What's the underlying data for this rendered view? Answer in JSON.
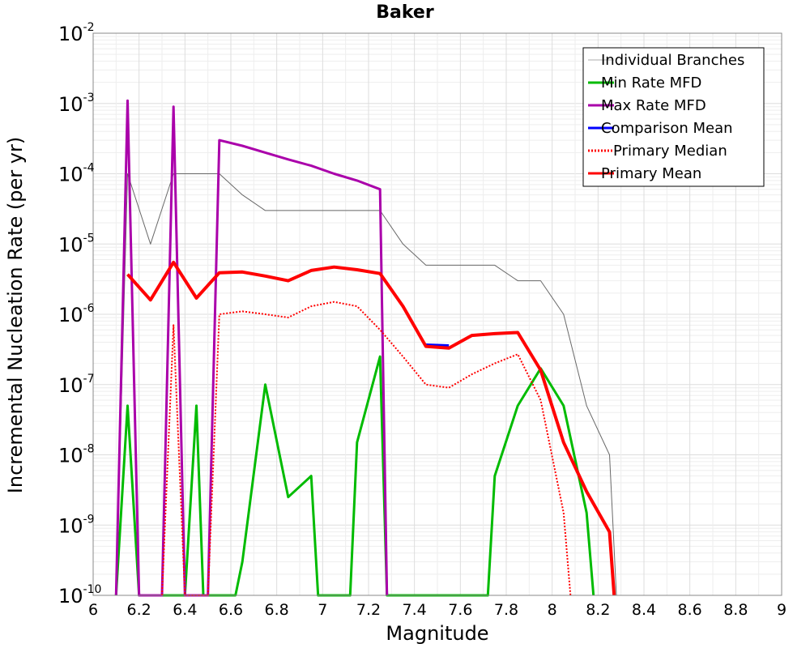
{
  "chart_data": {
    "type": "line",
    "title": "Baker",
    "xlabel": "Magnitude",
    "ylabel": "Incremental Nucleation Rate (per yr)",
    "x_range": [
      6,
      9
    ],
    "y_range": [
      1e-10,
      0.01
    ],
    "y_scale": "log",
    "grid": true,
    "legend_position": "top-right",
    "x_ticks": [
      "6",
      "6.2",
      "6.4",
      "6.6",
      "6.8",
      "7",
      "7.2",
      "7.4",
      "7.6",
      "7.8",
      "8",
      "8.2",
      "8.4",
      "8.6",
      "8.8",
      "9"
    ],
    "y_ticks": [
      {
        "base": "10",
        "exp": "-2",
        "value": 0.01
      },
      {
        "base": "10",
        "exp": "-3",
        "value": 0.001
      },
      {
        "base": "10",
        "exp": "-4",
        "value": 0.0001
      },
      {
        "base": "10",
        "exp": "-5",
        "value": 1e-05
      },
      {
        "base": "10",
        "exp": "-6",
        "value": 1e-06
      },
      {
        "base": "10",
        "exp": "-7",
        "value": 1e-07
      },
      {
        "base": "10",
        "exp": "-8",
        "value": 1e-08
      },
      {
        "base": "10",
        "exp": "-9",
        "value": 1e-09
      },
      {
        "base": "10",
        "exp": "-10",
        "value": 1e-10
      }
    ],
    "series": [
      {
        "name": "Individual Branches",
        "color": "#595959",
        "style": "thin",
        "points": [
          [
            6.1,
            1e-10
          ],
          [
            6.15,
            0.0001
          ],
          [
            6.25,
            1e-05
          ],
          [
            6.35,
            0.0001
          ],
          [
            6.45,
            0.0001
          ],
          [
            6.55,
            0.0001
          ],
          [
            6.65,
            5e-05
          ],
          [
            6.75,
            3e-05
          ],
          [
            6.85,
            3e-05
          ],
          [
            6.95,
            3e-05
          ],
          [
            7.05,
            3e-05
          ],
          [
            7.15,
            3e-05
          ],
          [
            7.25,
            3e-05
          ],
          [
            7.35,
            1e-05
          ],
          [
            7.45,
            5e-06
          ],
          [
            7.55,
            5e-06
          ],
          [
            7.65,
            5e-06
          ],
          [
            7.75,
            5e-06
          ],
          [
            7.85,
            3e-06
          ],
          [
            7.95,
            3e-06
          ],
          [
            8.05,
            1e-06
          ],
          [
            8.15,
            5e-08
          ],
          [
            8.25,
            1e-08
          ],
          [
            8.28,
            1e-10
          ]
        ]
      },
      {
        "name": "Min Rate MFD",
        "color": "#00bb00",
        "style": "solid",
        "points": [
          [
            6.1,
            1e-10
          ],
          [
            6.15,
            5e-08
          ],
          [
            6.2,
            1e-10
          ],
          [
            6.4,
            1e-10
          ],
          [
            6.45,
            5e-08
          ],
          [
            6.48,
            1e-10
          ],
          [
            6.62,
            1e-10
          ],
          [
            6.65,
            3e-10
          ],
          [
            6.75,
            1e-07
          ],
          [
            6.85,
            2.5e-09
          ],
          [
            6.95,
            5e-09
          ],
          [
            6.98,
            1e-10
          ],
          [
            7.12,
            1e-10
          ],
          [
            7.15,
            1.5e-08
          ],
          [
            7.25,
            2.5e-07
          ],
          [
            7.28,
            1e-10
          ],
          [
            7.72,
            1e-10
          ],
          [
            7.75,
            5e-09
          ],
          [
            7.85,
            5e-08
          ],
          [
            7.95,
            1.7e-07
          ],
          [
            8.05,
            5e-08
          ],
          [
            8.15,
            1.5e-09
          ],
          [
            8.18,
            1e-10
          ]
        ]
      },
      {
        "name": "Max Rate MFD",
        "color": "#aa00aa",
        "style": "solid",
        "points": [
          [
            6.1,
            1e-10
          ],
          [
            6.15,
            0.0011
          ],
          [
            6.2,
            1e-10
          ],
          [
            6.3,
            1e-10
          ],
          [
            6.35,
            0.0009
          ],
          [
            6.4,
            1e-10
          ],
          [
            6.5,
            1e-10
          ],
          [
            6.55,
            0.0003
          ],
          [
            6.65,
            0.00025
          ],
          [
            6.75,
            0.0002
          ],
          [
            6.85,
            0.00016
          ],
          [
            6.95,
            0.00013
          ],
          [
            7.05,
            0.0001
          ],
          [
            7.15,
            8e-05
          ],
          [
            7.25,
            6e-05
          ],
          [
            7.28,
            1e-10
          ]
        ]
      },
      {
        "name": "Comparison Mean",
        "color": "#0000ff",
        "style": "solid",
        "points": [
          [
            7.45,
            3.7e-07
          ],
          [
            7.55,
            3.6e-07
          ]
        ]
      },
      {
        "name": "Primary Median",
        "color": "#ff0000",
        "style": "dotted",
        "points": [
          [
            6.3,
            1e-10
          ],
          [
            6.35,
            7e-07
          ],
          [
            6.4,
            1e-10
          ],
          [
            6.5,
            1e-10
          ],
          [
            6.55,
            1e-06
          ],
          [
            6.65,
            1.1e-06
          ],
          [
            6.75,
            1e-06
          ],
          [
            6.85,
            9e-07
          ],
          [
            6.95,
            1.3e-06
          ],
          [
            7.05,
            1.5e-06
          ],
          [
            7.15,
            1.3e-06
          ],
          [
            7.25,
            6e-07
          ],
          [
            7.35,
            2.5e-07
          ],
          [
            7.45,
            1e-07
          ],
          [
            7.55,
            9e-08
          ],
          [
            7.65,
            1.4e-07
          ],
          [
            7.75,
            2e-07
          ],
          [
            7.85,
            2.7e-07
          ],
          [
            7.95,
            6e-08
          ],
          [
            8.05,
            1.5e-09
          ],
          [
            8.08,
            1e-10
          ]
        ]
      },
      {
        "name": "Primary Mean",
        "color": "#ff0000",
        "style": "thick",
        "points": [
          [
            6.15,
            3.7e-06
          ],
          [
            6.25,
            1.6e-06
          ],
          [
            6.35,
            5.5e-06
          ],
          [
            6.45,
            1.7e-06
          ],
          [
            6.55,
            3.9e-06
          ],
          [
            6.65,
            4e-06
          ],
          [
            6.75,
            3.5e-06
          ],
          [
            6.85,
            3e-06
          ],
          [
            6.95,
            4.2e-06
          ],
          [
            7.05,
            4.7e-06
          ],
          [
            7.15,
            4.3e-06
          ],
          [
            7.25,
            3.8e-06
          ],
          [
            7.35,
            1.3e-06
          ],
          [
            7.45,
            3.5e-07
          ],
          [
            7.55,
            3.3e-07
          ],
          [
            7.65,
            5e-07
          ],
          [
            7.75,
            5.3e-07
          ],
          [
            7.85,
            5.5e-07
          ],
          [
            7.95,
            1.6e-07
          ],
          [
            8.05,
            1.5e-08
          ],
          [
            8.15,
            3e-09
          ],
          [
            8.25,
            8e-10
          ],
          [
            8.27,
            1e-10
          ]
        ]
      }
    ]
  }
}
